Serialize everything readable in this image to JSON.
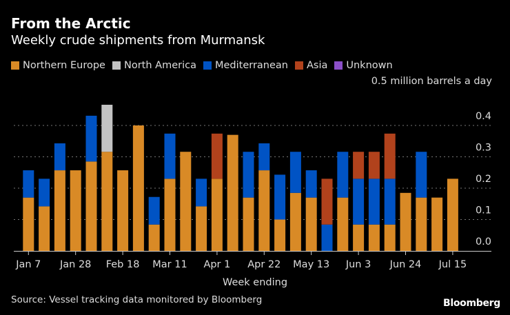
{
  "chart_data": {
    "type": "bar",
    "stacked": true,
    "title": "From the Arctic",
    "subtitle": "Weekly crude shipments from Murmansk",
    "xlabel": "Week ending",
    "ylabel": "0.5 million barrels a day",
    "ylim": [
      0,
      0.5
    ],
    "yticks": [
      "0.0",
      "0.1",
      "0.2",
      "0.3",
      "0.4"
    ],
    "ytick_values": [
      0,
      0.1,
      0.2,
      0.3,
      0.4
    ],
    "grid": true,
    "legend_placement": "top-left",
    "xtick_labels": [
      "Jan 7",
      "Jan 28",
      "Feb 18",
      "Mar 11",
      "Apr 1",
      "Apr 22",
      "May 13",
      "Jun 3",
      "Jun 24",
      "Jul 15"
    ],
    "xtick_every": 3,
    "num_weeks": 28,
    "series": [
      {
        "name": "Northern Europe",
        "color": "#d98a26",
        "values": [
          0.17,
          0.142,
          0.257,
          0.257,
          0.285,
          0.316,
          0.257,
          0.4,
          0.084,
          0.23,
          0.316,
          0.142,
          0.23,
          0.37,
          0.17,
          0.257,
          0.1,
          0.185,
          0.17,
          0,
          0.17,
          0.084,
          0.084,
          0.084,
          0.185,
          0.17,
          0.17,
          0.23
        ]
      },
      {
        "name": "North America",
        "color": "#c3c3c3",
        "values": [
          0,
          0,
          0,
          0,
          0,
          0.15,
          0,
          0,
          0,
          0,
          0,
          0,
          0,
          0,
          0,
          0,
          0,
          0,
          0,
          0,
          0,
          0,
          0,
          0,
          0,
          0,
          0,
          0
        ]
      },
      {
        "name": "Mediterranean",
        "color": "#0053c4",
        "values": [
          0.087,
          0.088,
          0.086,
          0,
          0.146,
          0,
          0,
          0,
          0.088,
          0.144,
          0,
          0.088,
          0,
          0,
          0.146,
          0.086,
          0.143,
          0.131,
          0.087,
          0.084,
          0.146,
          0.146,
          0.146,
          0.146,
          0,
          0.146,
          0,
          0
        ]
      },
      {
        "name": "Asia",
        "color": "#b1421c",
        "values": [
          0,
          0,
          0,
          0,
          0,
          0,
          0,
          0,
          0,
          0,
          0,
          0,
          0.144,
          0,
          0,
          0,
          0,
          0,
          0,
          0.146,
          0,
          0.086,
          0.086,
          0.144,
          0,
          0,
          0,
          0
        ]
      },
      {
        "name": "Unknown",
        "color": "#8b4fc8",
        "values": [
          0,
          0,
          0,
          0,
          0,
          0,
          0,
          0,
          0,
          0,
          0,
          0,
          0,
          0,
          0,
          0,
          0,
          0,
          0,
          0,
          0,
          0,
          0,
          0,
          0,
          0,
          0,
          0
        ]
      }
    ]
  },
  "source": "Source: Vessel tracking data monitored by Bloomberg",
  "brand": "Bloomberg"
}
